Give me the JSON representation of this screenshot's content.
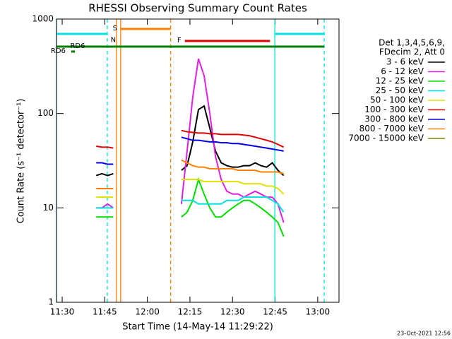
{
  "chart_data": {
    "type": "line",
    "title": "RHESSI Observing Summary Count Rates",
    "xlabel": "Start Time (14-May-14 11:29:22)",
    "ylabel": "Count Rate (s⁻¹ detector⁻¹)",
    "log_y": true,
    "xlim": [
      28,
      127.5
    ],
    "xticks": [
      {
        "value": 30,
        "label": "11:30"
      },
      {
        "value": 45,
        "label": "11:45"
      },
      {
        "value": 60,
        "label": "12:00"
      },
      {
        "value": 75,
        "label": "12:15"
      },
      {
        "value": 90,
        "label": "12:30"
      },
      {
        "value": 105,
        "label": "12:45"
      },
      {
        "value": 120,
        "label": "13:00"
      }
    ],
    "ylim": [
      1,
      1000
    ],
    "yticks": [
      1,
      10,
      100,
      1000
    ],
    "legend_header": [
      "Det 1,3,4,5,6,9,",
      "FDecim 2, Att 0"
    ],
    "timestamp": "23-Oct-2021 12:56",
    "x": [
      42,
      44,
      46,
      48,
      60,
      72,
      74,
      76,
      78,
      80,
      82,
      84,
      86,
      88,
      90,
      92,
      94,
      96,
      98,
      100,
      102,
      104,
      106,
      108
    ],
    "series": [
      {
        "name": "3 - 6 keV",
        "color": "#000000",
        "values": [
          22,
          23,
          22,
          23,
          null,
          25,
          28,
          50,
          110,
          120,
          70,
          40,
          30,
          28,
          27,
          27,
          28,
          28,
          30,
          28,
          27,
          30,
          25,
          22
        ]
      },
      {
        "name": "6 - 12 keV",
        "color": "#e020e0",
        "values": [
          10,
          10,
          11,
          10,
          null,
          11,
          40,
          150,
          380,
          250,
          100,
          35,
          20,
          15,
          14,
          14,
          13,
          14,
          15,
          14,
          13,
          13,
          11,
          7
        ]
      },
      {
        "name": "12 - 25 keV",
        "color": "#00dd00",
        "values": [
          8,
          8,
          8,
          8,
          null,
          8,
          9,
          12,
          20,
          14,
          10,
          8,
          8,
          9,
          10,
          11,
          12,
          12,
          11,
          10,
          9,
          8,
          7,
          5
        ]
      },
      {
        "name": "25 - 50 keV",
        "color": "#00e0e0",
        "values": [
          10,
          10,
          10,
          10,
          null,
          12,
          12,
          12,
          11,
          11,
          11,
          11,
          11,
          12,
          12,
          12,
          13,
          13,
          13,
          13,
          13,
          12,
          11,
          9
        ]
      },
      {
        "name": "50 - 100 keV",
        "color": "#e0e000",
        "values": [
          13,
          13,
          13,
          13,
          null,
          20,
          20,
          20,
          20,
          19,
          19,
          19,
          19,
          19,
          19,
          19,
          18,
          18,
          18,
          18,
          17,
          17,
          16,
          14
        ]
      },
      {
        "name": "100 - 300 keV",
        "color": "#e00000",
        "values": [
          45,
          44,
          44,
          43,
          null,
          66,
          64,
          63,
          62,
          62,
          61,
          61,
          60,
          60,
          60,
          60,
          59,
          58,
          56,
          54,
          52,
          50,
          47,
          44
        ]
      },
      {
        "name": "300 - 800 keV",
        "color": "#0000e0",
        "values": [
          30,
          30,
          29,
          29,
          null,
          56,
          54,
          52,
          52,
          51,
          50,
          50,
          49,
          49,
          48,
          48,
          47,
          46,
          45,
          44,
          43,
          42,
          41,
          40
        ]
      },
      {
        "name": "800 - 7000 keV",
        "color": "#ff8000",
        "values": [
          16,
          16,
          16,
          16,
          null,
          32,
          30,
          28,
          27,
          27,
          26,
          26,
          26,
          26,
          26,
          25,
          25,
          25,
          25,
          24,
          24,
          24,
          24,
          23
        ]
      },
      {
        "name": "7000 - 15000 keV",
        "color": "#808000",
        "values": [
          null,
          null,
          null,
          null,
          null,
          null,
          null,
          null,
          null,
          null,
          null,
          null,
          null,
          null,
          null,
          null,
          null,
          null,
          null,
          null,
          null,
          null,
          null,
          null
        ]
      }
    ],
    "state_bars": [
      {
        "color": "#00e0e0",
        "x": [
          28,
          45.9
        ],
        "y": 697
      },
      {
        "color": "#00e0e0",
        "x": [
          104.9,
          122.3
        ],
        "y": 697
      },
      {
        "label": "S",
        "color": "#ff8000",
        "x": [
          50.6,
          68.2
        ],
        "y": 785
      },
      {
        "label": "F",
        "color": "#e00000",
        "x": [
          73.2,
          103.2
        ],
        "y": 586
      },
      {
        "label": "RD6",
        "color": "#008000",
        "x": [
          28,
          122.3
        ],
        "y": 511
      },
      {
        "label": "RD6",
        "color": "#008000",
        "x": [
          33.2,
          34.5
        ],
        "y": 453
      }
    ],
    "state_labels": [
      {
        "label": "N",
        "color": "#00e0e0",
        "x": 48,
        "y": 600
      }
    ],
    "vlines": [
      {
        "x": 28,
        "color": "#00e0e0",
        "dashed": false
      },
      {
        "x": 45.9,
        "color": "#00e0e0",
        "dashed": true
      },
      {
        "x": 49.1,
        "color": "#ff8000",
        "dashed": false
      },
      {
        "x": 50.6,
        "color": "#ff8000",
        "dashed": false
      },
      {
        "x": 68.2,
        "color": "#ff8000",
        "dashed": true
      },
      {
        "x": 104.9,
        "color": "#00e0e0",
        "dashed": false
      },
      {
        "x": 122.3,
        "color": "#00e0e0",
        "dashed": true
      }
    ]
  }
}
